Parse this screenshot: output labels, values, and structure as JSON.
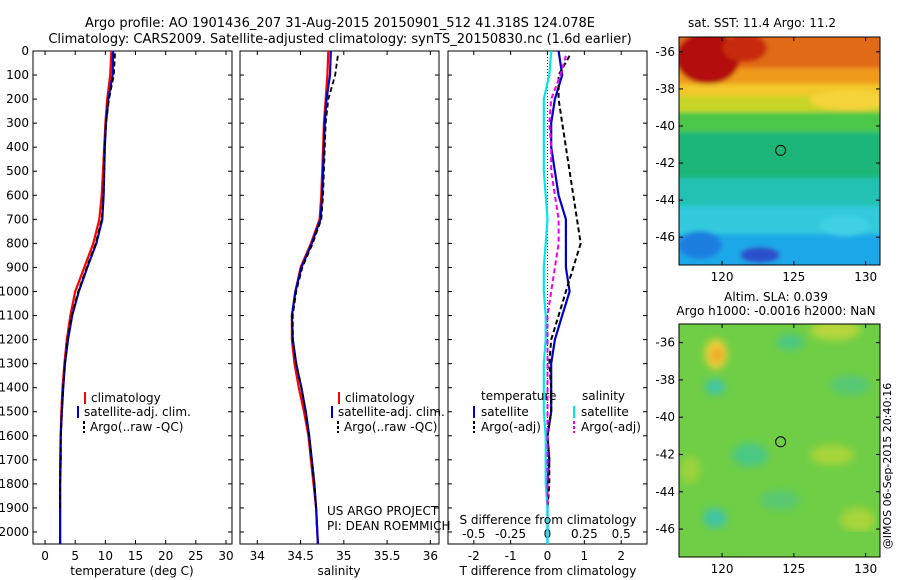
{
  "header": {
    "title_line1": "Argo profile: AO 1901436_207 31-Aug-2015 20150901_512 41.318S 124.078E",
    "title_line2": "Climatology: CARS2009. Satellite-adjusted climatology: synTS_20150830.nc (1.6d earlier)"
  },
  "credit": "@IMOS 06-Sep-2015 20:40:16",
  "colors": {
    "climatology": "#ff0000",
    "satellite": "#0000cc",
    "argo": "#000000",
    "salinity_satellite": "#00e5ee",
    "salinity_argo": "#ee00ee"
  },
  "chart_data": [
    {
      "type": "line",
      "xlabel": "temperature (deg C)",
      "ylabel": "",
      "xlim": [
        -2,
        31
      ],
      "ylim": [
        0,
        2050
      ],
      "xticks": [
        0,
        5,
        10,
        15,
        20,
        25,
        30
      ],
      "yticks": [
        0,
        100,
        200,
        300,
        400,
        500,
        600,
        700,
        800,
        900,
        1000,
        1100,
        1200,
        1300,
        1400,
        1500,
        1600,
        1700,
        1800,
        1900,
        2000
      ],
      "legend": [
        "climatology",
        "satellite-adj. clim.",
        "Argo(..raw -QC)"
      ],
      "legend_location": "lower-right",
      "series": [
        {
          "name": "climatology",
          "x": [
            11.0,
            10.8,
            10.3,
            10.0,
            9.8,
            9.6,
            9.4,
            9.0,
            8.0,
            6.5,
            5.0,
            4.2,
            3.6,
            3.2,
            2.9,
            2.7,
            2.6,
            2.5,
            2.5,
            2.5,
            2.5
          ],
          "y": [
            0,
            100,
            200,
            300,
            400,
            500,
            600,
            700,
            800,
            900,
            1000,
            1100,
            1200,
            1300,
            1400,
            1500,
            1600,
            1700,
            1800,
            1900,
            2050
          ]
        },
        {
          "name": "satellite-adj. clim.",
          "x": [
            11.3,
            11.2,
            10.5,
            10.1,
            9.9,
            9.8,
            9.7,
            9.5,
            8.5,
            7.0,
            5.6,
            4.5,
            3.8,
            3.3,
            3.0,
            2.8,
            2.6,
            2.6,
            2.5,
            2.5,
            2.5
          ],
          "y": [
            0,
            100,
            200,
            300,
            400,
            500,
            600,
            700,
            800,
            900,
            1000,
            1100,
            1200,
            1300,
            1400,
            1500,
            1600,
            1700,
            1800,
            1900,
            2050
          ]
        },
        {
          "name": "Argo(..raw -QC)",
          "x": [
            11.6,
            11.4,
            10.6,
            10.1,
            9.9,
            9.8,
            9.7,
            9.4,
            8.4,
            6.9,
            5.5,
            4.4,
            3.7,
            3.3,
            3.0,
            2.8,
            2.6,
            2.6,
            2.5,
            2.5
          ],
          "y": [
            10,
            100,
            200,
            300,
            400,
            500,
            600,
            700,
            800,
            900,
            1000,
            1100,
            1200,
            1300,
            1400,
            1500,
            1600,
            1700,
            1800,
            1900
          ]
        }
      ]
    },
    {
      "type": "line",
      "xlabel": "salinity",
      "ylabel": "",
      "xlim": [
        33.8,
        36.1
      ],
      "ylim": [
        0,
        2050
      ],
      "xticks": [
        34,
        34.5,
        35,
        35.5,
        36
      ],
      "legend": [
        "climatology",
        "satellite-adj. clim.",
        "Argo(..raw -QC)"
      ],
      "legend_location": "lower-right",
      "annotation": [
        "US ARGO PROJECT",
        "PI: DEAN ROEMMICH"
      ],
      "series": [
        {
          "name": "climatology",
          "x": [
            34.82,
            34.81,
            34.79,
            34.77,
            34.76,
            34.75,
            34.74,
            34.72,
            34.62,
            34.5,
            34.44,
            34.4,
            34.4,
            34.43,
            34.48,
            34.54,
            34.59,
            34.62,
            34.65,
            34.68,
            34.7
          ],
          "y": [
            0,
            100,
            200,
            300,
            400,
            500,
            600,
            700,
            800,
            900,
            1000,
            1100,
            1200,
            1300,
            1400,
            1500,
            1600,
            1700,
            1800,
            1900,
            2050
          ]
        },
        {
          "name": "satellite-adj. clim.",
          "x": [
            34.85,
            34.84,
            34.8,
            34.78,
            34.77,
            34.76,
            34.75,
            34.73,
            34.63,
            34.51,
            34.44,
            34.4,
            34.41,
            34.45,
            34.51,
            34.56,
            34.6,
            34.63,
            34.66,
            34.68,
            34.7
          ],
          "y": [
            0,
            100,
            200,
            300,
            400,
            500,
            600,
            700,
            800,
            900,
            1000,
            1100,
            1200,
            1300,
            1400,
            1500,
            1600,
            1700,
            1800,
            1900,
            2050
          ]
        },
        {
          "name": "Argo(..raw -QC)",
          "x": [
            34.93,
            34.9,
            34.82,
            34.79,
            34.78,
            34.77,
            34.76,
            34.74,
            34.64,
            34.52,
            34.45,
            34.41,
            34.41,
            34.45,
            34.51,
            34.56,
            34.6,
            34.63,
            34.66,
            34.68
          ],
          "y": [
            20,
            100,
            200,
            300,
            400,
            500,
            600,
            700,
            800,
            900,
            1000,
            1100,
            1200,
            1300,
            1400,
            1500,
            1600,
            1700,
            1800,
            1900
          ]
        }
      ]
    },
    {
      "type": "line",
      "xlabel": "T difference from climatology",
      "xlabel_top": "S difference from climatology",
      "xlim": [
        -2.7,
        2.7
      ],
      "ylim": [
        0,
        2050
      ],
      "xticks": [
        -2,
        -1,
        0,
        1,
        2
      ],
      "xticks_s": [
        "-0.5",
        "-0.25",
        "0",
        "0.25",
        "0.5"
      ],
      "legend_temperature": [
        "temperature",
        "satellite",
        "Argo(-adj)"
      ],
      "legend_salinity": [
        "salinity",
        "satellite",
        "Argo(-adj)"
      ],
      "series": [
        {
          "name": "temperature satellite",
          "x": [
            0.3,
            0.4,
            0.2,
            0.1,
            0.1,
            0.2,
            0.3,
            0.5,
            0.5,
            0.5,
            0.6,
            0.4,
            0.2,
            0.1,
            0.1,
            0.1,
            0.0,
            0.05,
            0.0,
            0.0,
            0.0
          ],
          "y": [
            0,
            100,
            200,
            300,
            400,
            500,
            600,
            700,
            800,
            900,
            1000,
            1100,
            1200,
            1300,
            1400,
            1500,
            1600,
            1700,
            1800,
            1900,
            2050
          ]
        },
        {
          "name": "temperature Argo(-adj)",
          "x": [
            0.6,
            0.3,
            0.3,
            0.4,
            0.5,
            0.6,
            0.7,
            0.8,
            0.9,
            0.7,
            0.5,
            0.3,
            0.1,
            0.05,
            0.1,
            0.1,
            0.0,
            0.05,
            0.05,
            0.0
          ],
          "y": [
            20,
            100,
            200,
            300,
            400,
            500,
            600,
            700,
            800,
            900,
            1000,
            1100,
            1200,
            1300,
            1400,
            1500,
            1600,
            1700,
            1800,
            1900
          ]
        },
        {
          "name": "salinity satellite",
          "x": [
            0.1,
            0.05,
            -0.1,
            -0.1,
            -0.1,
            -0.1,
            -0.05,
            0.0,
            -0.05,
            -0.1,
            -0.1,
            -0.05,
            -0.05,
            -0.1,
            -0.1,
            -0.1,
            -0.05,
            -0.05,
            -0.05,
            0.0,
            0.0
          ],
          "y": [
            0,
            100,
            200,
            300,
            400,
            500,
            600,
            700,
            800,
            900,
            1000,
            1100,
            1200,
            1300,
            1400,
            1500,
            1600,
            1700,
            1800,
            1900,
            2050
          ]
        },
        {
          "name": "salinity Argo(-adj)",
          "x": [
            0.5,
            0.35,
            0.1,
            0.05,
            0.1,
            0.1,
            0.2,
            0.3,
            0.3,
            0.2,
            0.1,
            0.0,
            0.0,
            0.0,
            0.0,
            0.0,
            0.0,
            0.0,
            0.0,
            0.0
          ],
          "y": [
            20,
            100,
            200,
            300,
            400,
            500,
            600,
            700,
            800,
            900,
            1000,
            1100,
            1200,
            1300,
            1400,
            1500,
            1600,
            1700,
            1800,
            1900
          ]
        }
      ]
    },
    {
      "type": "heatmap",
      "title": "sat. SST: 11.4  Argo: 11.2",
      "xlim": [
        117,
        131
      ],
      "ylim": [
        -47.5,
        -35.2
      ],
      "xticks": [
        120,
        125,
        130
      ],
      "yticks": [
        -36,
        -38,
        -40,
        -42,
        -44,
        -46
      ],
      "marker": {
        "lon": 124.078,
        "lat": -41.318
      }
    },
    {
      "type": "heatmap",
      "title_line1": "Altim. SLA: 0.039",
      "title_line2": "Argo h1000: -0.0016  h2000: NaN",
      "xlim": [
        117,
        131
      ],
      "ylim": [
        -47.5,
        -35
      ],
      "xticks": [
        120,
        125,
        130
      ],
      "yticks": [
        -36,
        -38,
        -40,
        -42,
        -44,
        -46
      ],
      "marker": {
        "lon": 124.078,
        "lat": -41.318
      }
    }
  ]
}
